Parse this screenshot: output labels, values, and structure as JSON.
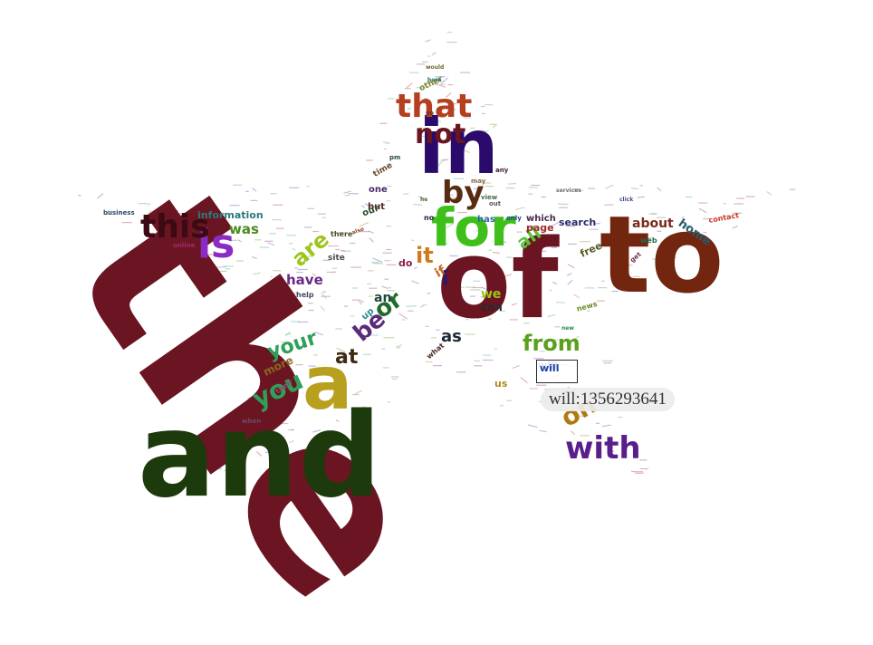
{
  "chart_data": {
    "type": "wordcloud",
    "shape": "star",
    "words": [
      {
        "text": "the",
        "color": "#6b1522"
      },
      {
        "text": "of",
        "color": "#6b1522"
      },
      {
        "text": "and",
        "color": "#1d3a0c"
      },
      {
        "text": "to",
        "color": "#72250f"
      },
      {
        "text": "a",
        "color": "#b8a01e"
      },
      {
        "text": "in",
        "color": "#2a0a6a"
      },
      {
        "text": "for",
        "color": "#3fbf1a"
      },
      {
        "text": "that",
        "color": "#b5401f"
      },
      {
        "text": "not",
        "color": "#6b1522"
      },
      {
        "text": "is",
        "color": "#8a2cc4"
      },
      {
        "text": "this",
        "color": "#3b0a12"
      },
      {
        "text": "by",
        "color": "#5a2b14"
      },
      {
        "text": "with",
        "color": "#5a1e8a"
      },
      {
        "text": "on",
        "color": "#b07a12"
      },
      {
        "text": "from",
        "color": "#5aa01e"
      },
      {
        "text": "you",
        "color": "#2ea05a"
      },
      {
        "text": "your",
        "color": "#2ea05a"
      },
      {
        "text": "it",
        "color": "#d07a1a"
      },
      {
        "text": "are",
        "color": "#9fc41e"
      },
      {
        "text": "or",
        "color": "#1f6b2a"
      },
      {
        "text": "be",
        "color": "#5a2b7a"
      },
      {
        "text": "at",
        "color": "#3b2a14"
      },
      {
        "text": "as",
        "color": "#1e2a3a"
      },
      {
        "text": "all",
        "color": "#5ac43a"
      },
      {
        "text": "was",
        "color": "#4a8a1e"
      },
      {
        "text": "have",
        "color": "#6a2a8a"
      },
      {
        "text": "an",
        "color": "#1e4a3a"
      },
      {
        "text": "we",
        "color": "#9fc41e"
      },
      {
        "text": "can",
        "color": "#2a2a2a"
      },
      {
        "text": "about",
        "color": "#7a2a1e"
      },
      {
        "text": "home",
        "color": "#2a5a6a"
      },
      {
        "text": "more",
        "color": "#8a6a1e"
      },
      {
        "text": "information",
        "color": "#2a7a7a"
      },
      {
        "text": "page",
        "color": "#a02a2a"
      },
      {
        "text": "search",
        "color": "#2a2a6a"
      },
      {
        "text": "i",
        "color": "#2a1a6a"
      },
      {
        "text": "if",
        "color": "#c46a1e"
      },
      {
        "text": "us",
        "color": "#b08a1e"
      },
      {
        "text": "will",
        "color": "#1f3fa6"
      },
      {
        "text": "but",
        "color": "#4a2a1e"
      },
      {
        "text": "our",
        "color": "#2a4a2a"
      },
      {
        "text": "one",
        "color": "#4a2a6a"
      },
      {
        "text": "free",
        "color": "#5a5a2a"
      },
      {
        "text": "do",
        "color": "#8a1e4a"
      },
      {
        "text": "up",
        "color": "#2a8a8a"
      },
      {
        "text": "site",
        "color": "#4a4a4a"
      },
      {
        "text": "has",
        "color": "#2a6aa0"
      },
      {
        "text": "which",
        "color": "#4a2a4a"
      },
      {
        "text": "time",
        "color": "#6a4a2a"
      },
      {
        "text": "other",
        "color": "#7a8a2a"
      },
      {
        "text": "help",
        "color": "#4a4a6a"
      },
      {
        "text": "their",
        "color": "#8a4a6a"
      },
      {
        "text": "what",
        "color": "#4a2a2a"
      },
      {
        "text": "web",
        "color": "#2a6a4a"
      },
      {
        "text": "online",
        "color": "#a02a6a"
      },
      {
        "text": "business",
        "color": "#2a4a6a"
      },
      {
        "text": "news",
        "color": "#6a8a2a"
      },
      {
        "text": "contact",
        "color": "#c43a2a"
      },
      {
        "text": "view",
        "color": "#4a6a4a"
      },
      {
        "text": "only",
        "color": "#2a4a8a"
      },
      {
        "text": "may",
        "color": "#8a6a4a"
      },
      {
        "text": "there",
        "color": "#4a4a2a"
      },
      {
        "text": "no",
        "color": "#2a2a4a"
      },
      {
        "text": "so",
        "color": "#6a2a2a"
      },
      {
        "text": "out",
        "color": "#5a5a5a"
      },
      {
        "text": "any",
        "color": "#4a2a4a"
      },
      {
        "text": "would",
        "color": "#6a6a2a"
      },
      {
        "text": "here",
        "color": "#2a6a6a"
      },
      {
        "text": "when",
        "color": "#6a4a6a"
      },
      {
        "text": "also",
        "color": "#8a4a2a"
      },
      {
        "text": "pm",
        "color": "#2a4a4a"
      },
      {
        "text": "he",
        "color": "#4a6a2a"
      },
      {
        "text": "get",
        "color": "#6a2a4a"
      },
      {
        "text": "new",
        "color": "#2a8a4a"
      },
      {
        "text": "click",
        "color": "#4a4a8a"
      },
      {
        "text": "services",
        "color": "#6a6a6a"
      }
    ],
    "hovered": {
      "text": "will",
      "value": 1356293641
    }
  },
  "tooltip": {
    "text": "will:1356293641"
  },
  "filler_colors": [
    "#7a8ac4",
    "#c47a9a",
    "#8ac47a",
    "#c4a47a",
    "#9a7ac4",
    "#7ac4b4",
    "#c47a7a",
    "#a4a4a4"
  ]
}
